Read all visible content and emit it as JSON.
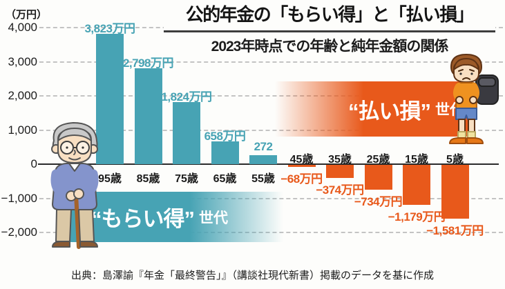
{
  "header": {
    "title": "公的年金の「もらい得」と「払い損」",
    "subtitle": "2023年時点での年齢と純年金額の関係"
  },
  "banners": {
    "gain": {
      "label": "“もらい得”",
      "suffix": "世代",
      "color": "#47a3b4"
    },
    "loss": {
      "label": "“払い損”",
      "suffix": "世代",
      "color": "#e8591b"
    }
  },
  "footer": {
    "source": "出典：島澤諭『年金「最終警告」』（講談社現代新書）掲載のデータを基に作成"
  },
  "illustrations": {
    "left": "elderly-man-with-cane",
    "right": "worried-schoolboy-with-backpack"
  },
  "chart_data": {
    "type": "bar",
    "unit_label": "（万円）",
    "categories": [
      "95歳",
      "85歳",
      "75歳",
      "65歳",
      "55歳",
      "45歳",
      "35歳",
      "25歳",
      "15歳",
      "5歳"
    ],
    "values": [
      3823,
      2798,
      1824,
      658,
      272,
      -68,
      -374,
      -734,
      -1179,
      -1581
    ],
    "bars": [
      {
        "category": "95歳",
        "value": 3823,
        "label": "3,823万円"
      },
      {
        "category": "85歳",
        "value": 2798,
        "label": "2,798万円"
      },
      {
        "category": "75歳",
        "value": 1824,
        "label": "1,824万円"
      },
      {
        "category": "65歳",
        "value": 658,
        "label": "658万円"
      },
      {
        "category": "55歳",
        "value": 272,
        "label": "272"
      },
      {
        "category": "45歳",
        "value": -68,
        "label": "−68万円"
      },
      {
        "category": "35歳",
        "value": -374,
        "label": "−374万円"
      },
      {
        "category": "25歳",
        "value": -734,
        "label": "−734万円"
      },
      {
        "category": "15歳",
        "value": -1179,
        "label": "−1,179万円"
      },
      {
        "category": "5歳",
        "value": -1581,
        "label": "−1,581万円"
      }
    ],
    "yticks": [
      {
        "value": 4000,
        "label": "4,000"
      },
      {
        "value": 3000,
        "label": "3,000"
      },
      {
        "value": 2000,
        "label": "2,000"
      },
      {
        "value": 1000,
        "label": "1,000"
      },
      {
        "value": 0,
        "label": "0"
      },
      {
        "value": -1000,
        "label": "−1,000"
      },
      {
        "value": -2000,
        "label": "−2,000"
      }
    ],
    "ylim": [
      -2300,
      4300
    ],
    "grid": "dashed-horizontal",
    "legend": "none",
    "positive_color": "#47a3b4",
    "negative_color": "#e8591b"
  }
}
